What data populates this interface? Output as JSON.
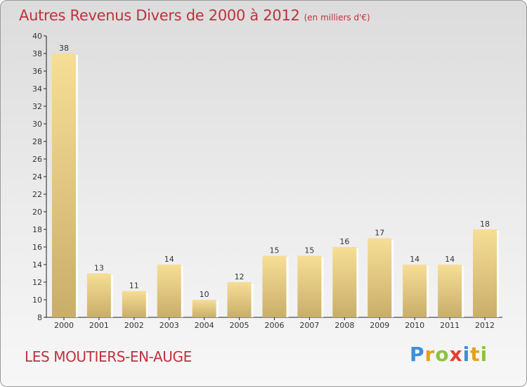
{
  "header": {
    "title": "Autres Revenus Divers de 2000 à 2012",
    "subtitle": "(en milliers d'€)"
  },
  "footer": {
    "commune": "LES MOUTIERS-EN-AUGE",
    "brand": "Proxiti"
  },
  "colors": {
    "title": "#c0313d",
    "bar_light": "#f7de96",
    "bar_dark": "#c9ae69",
    "axis": "#222222"
  },
  "chart_data": {
    "type": "bar",
    "title": "Autres Revenus Divers de 2000 à 2012",
    "subtitle": "(en milliers d'€)",
    "categories": [
      "2000",
      "2001",
      "2002",
      "2003",
      "2004",
      "2005",
      "2006",
      "2007",
      "2008",
      "2009",
      "2010",
      "2011",
      "2012"
    ],
    "values": [
      38,
      13,
      11,
      14,
      10,
      12,
      15,
      15,
      16,
      17,
      14,
      14,
      18
    ],
    "ylim": [
      8,
      40
    ],
    "yticks": [
      8,
      10,
      12,
      14,
      16,
      18,
      20,
      22,
      24,
      26,
      28,
      30,
      32,
      34,
      36,
      38,
      40
    ],
    "grid": false,
    "data_labels": true
  }
}
